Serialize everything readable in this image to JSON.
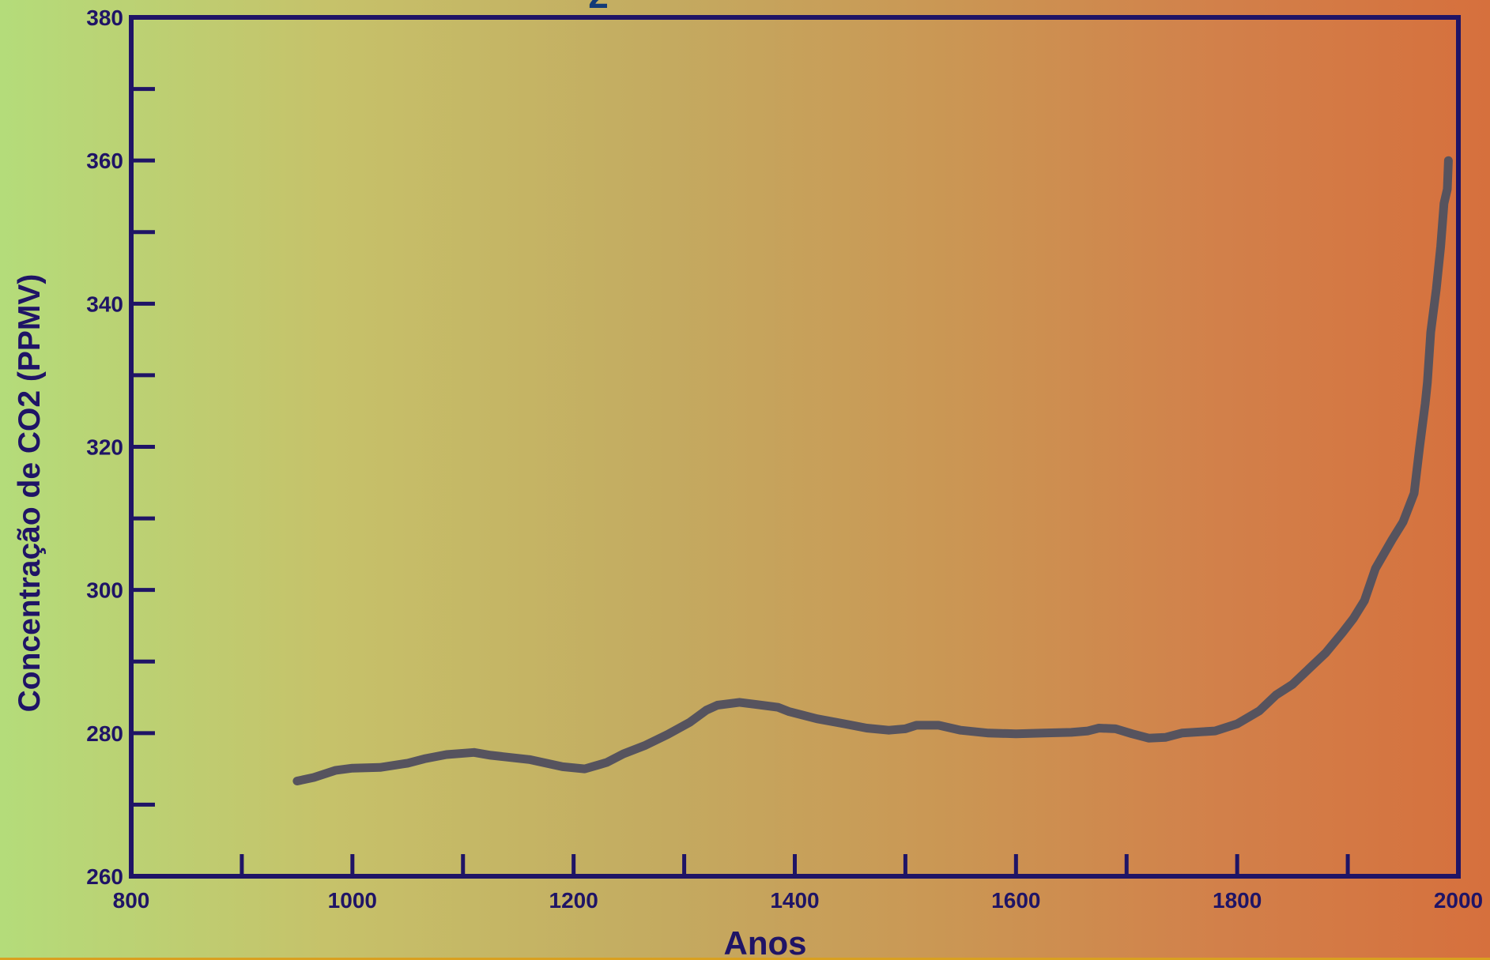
{
  "colors": {
    "axis": "#1f1466",
    "line": "#56535e",
    "title_fragment": "#123a78"
  },
  "title_fragment": "2",
  "chart_data": {
    "type": "line",
    "title": "",
    "xlabel": "Anos",
    "ylabel": "Concentração de CO2 (PPMV)",
    "xlim": [
      800,
      2000
    ],
    "ylim": [
      260,
      380
    ],
    "x_ticks": [
      "800",
      "1000",
      "1200",
      "1400",
      "1600",
      "1800",
      "2000"
    ],
    "y_ticks": [
      "260",
      "280",
      "300",
      "320",
      "340",
      "360",
      "380"
    ],
    "grid": false,
    "series": [
      {
        "x": [
          950,
          965,
          985,
          1000,
          1025,
          1050,
          1065,
          1085,
          1110,
          1125,
          1160,
          1190,
          1210,
          1230,
          1245,
          1265,
          1285,
          1305,
          1320,
          1330,
          1350,
          1365,
          1385,
          1395,
          1420,
          1445,
          1465,
          1485,
          1500,
          1510,
          1530,
          1550,
          1575,
          1600,
          1625,
          1650,
          1665,
          1675,
          1690,
          1705,
          1720,
          1735,
          1750,
          1780,
          1800,
          1820,
          1835,
          1850,
          1865,
          1880,
          1895,
          1905,
          1915,
          1925,
          1940,
          1950,
          1960,
          1965,
          1970,
          1972,
          1975,
          1980,
          1984,
          1987,
          1990,
          1991
        ],
        "y": [
          273.3,
          273.8,
          274.8,
          275.1,
          275.2,
          275.8,
          276.4,
          277.0,
          277.3,
          276.9,
          276.3,
          275.3,
          275.0,
          275.9,
          277.1,
          278.3,
          279.8,
          281.5,
          283.2,
          283.9,
          284.3,
          284.0,
          283.6,
          283.0,
          282.0,
          281.3,
          280.7,
          280.4,
          280.6,
          281.1,
          281.1,
          280.4,
          280.0,
          279.9,
          280.0,
          280.1,
          280.3,
          280.7,
          280.6,
          279.9,
          279.3,
          279.4,
          280.0,
          280.3,
          281.3,
          283.1,
          285.3,
          286.8,
          289.0,
          291.2,
          294.0,
          296.0,
          298.5,
          303.0,
          307.0,
          309.5,
          313.5,
          320.0,
          326.0,
          329.0,
          336.0,
          342.0,
          348.0,
          354.0,
          356.0,
          360.0
        ]
      }
    ]
  }
}
